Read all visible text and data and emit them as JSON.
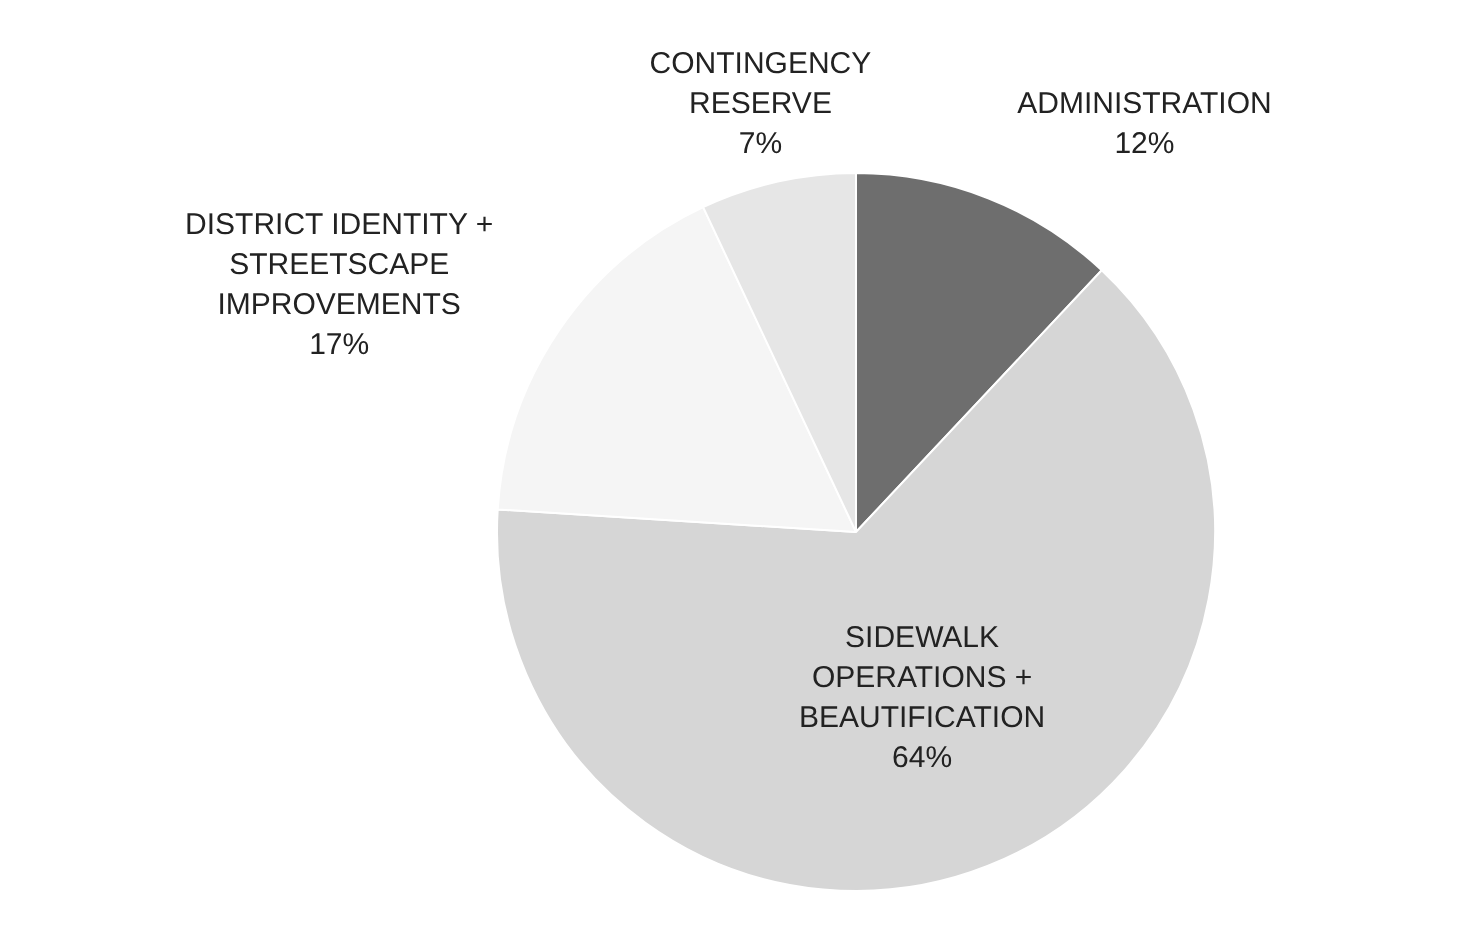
{
  "chart_data": {
    "type": "pie",
    "categories": [
      "ADMINISTRATION",
      "SIDEWALK OPERATIONS + BEAUTIFICATION",
      "DISTRICT IDENTITY + STREETSCAPE IMPROVEMENTS",
      "CONTINGENCY RESERVE"
    ],
    "values": [
      12,
      64,
      17,
      7
    ],
    "colors": [
      "#6e6e6e",
      "#d6d6d6",
      "#f5f5f5",
      "#e6e6e6"
    ],
    "value_labels": [
      "12%",
      "64%",
      "17%",
      "7%"
    ],
    "legend": false
  }
}
